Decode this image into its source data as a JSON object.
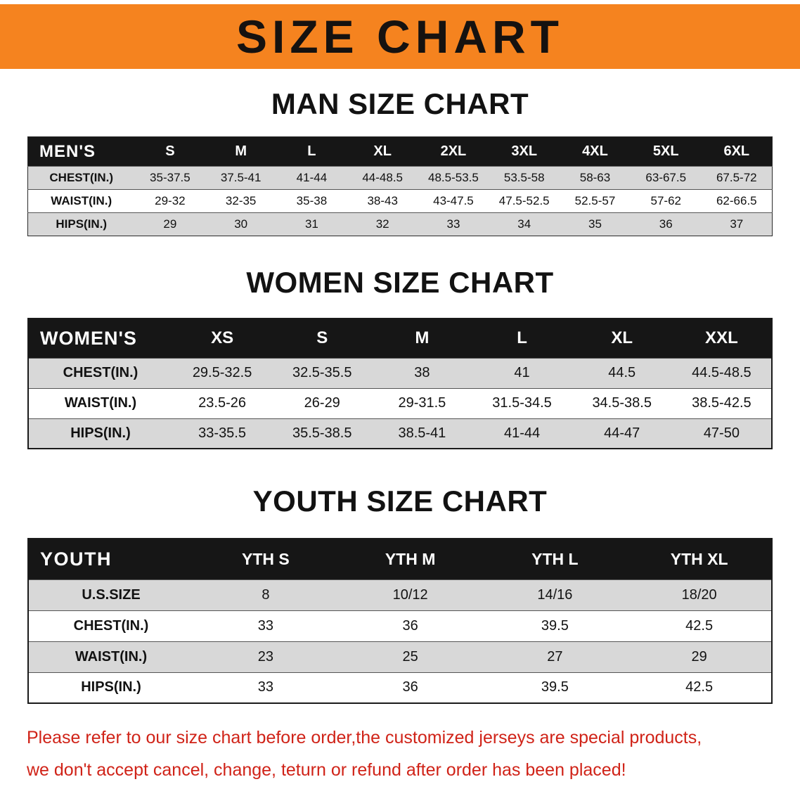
{
  "banner": {
    "title": "SIZE CHART"
  },
  "sections": [
    {
      "id": "men",
      "heading": "MAN SIZE CHART",
      "table": {
        "header_label": "MEN'S",
        "columns": [
          "S",
          "M",
          "L",
          "XL",
          "2XL",
          "3XL",
          "4XL",
          "5XL",
          "6XL"
        ],
        "rows": [
          {
            "label": "CHEST(IN.)",
            "values": [
              "35-37.5",
              "37.5-41",
              "41-44",
              "44-48.5",
              "48.5-53.5",
              "53.5-58",
              "58-63",
              "63-67.5",
              "67.5-72"
            ]
          },
          {
            "label": "WAIST(IN.)",
            "values": [
              "29-32",
              "32-35",
              "35-38",
              "38-43",
              "43-47.5",
              "47.5-52.5",
              "52.5-57",
              "57-62",
              "62-66.5"
            ]
          },
          {
            "label": "HIPS(IN.)",
            "values": [
              "29",
              "30",
              "31",
              "32",
              "33",
              "34",
              "35",
              "36",
              "37"
            ]
          }
        ]
      }
    },
    {
      "id": "women",
      "heading": "WOMEN SIZE CHART",
      "table": {
        "header_label": "WOMEN'S",
        "columns": [
          "XS",
          "S",
          "M",
          "L",
          "XL",
          "XXL"
        ],
        "rows": [
          {
            "label": "CHEST(IN.)",
            "values": [
              "29.5-32.5",
              "32.5-35.5",
              "38",
              "41",
              "44.5",
              "44.5-48.5"
            ]
          },
          {
            "label": "WAIST(IN.)",
            "values": [
              "23.5-26",
              "26-29",
              "29-31.5",
              "31.5-34.5",
              "34.5-38.5",
              "38.5-42.5"
            ]
          },
          {
            "label": "HIPS(IN.)",
            "values": [
              "33-35.5",
              "35.5-38.5",
              "38.5-41",
              "41-44",
              "44-47",
              "47-50"
            ]
          }
        ]
      }
    },
    {
      "id": "youth",
      "heading": "YOUTH SIZE CHART",
      "table": {
        "header_label": "YOUTH",
        "columns": [
          "YTH S",
          "YTH M",
          "YTH L",
          "YTH XL"
        ],
        "rows": [
          {
            "label": "U.S.SIZE",
            "values": [
              "8",
              "10/12",
              "14/16",
              "18/20"
            ]
          },
          {
            "label": "CHEST(IN.)",
            "values": [
              "33",
              "36",
              "39.5",
              "42.5"
            ]
          },
          {
            "label": "WAIST(IN.)",
            "values": [
              "23",
              "25",
              "27",
              "29"
            ]
          },
          {
            "label": "HIPS(IN.)",
            "values": [
              "33",
              "36",
              "39.5",
              "42.5"
            ]
          }
        ]
      }
    }
  ],
  "footer": {
    "line1": "Please refer to our size chart before order,the customized jerseys are special products,",
    "line2": "we don't accept cancel, change, teturn or refund after order has been placed!"
  },
  "colors": {
    "banner_orange": "#f5831f",
    "header_black": "#161616",
    "row_shade_gray": "#d8d8d8",
    "notice_red": "#d02318"
  }
}
